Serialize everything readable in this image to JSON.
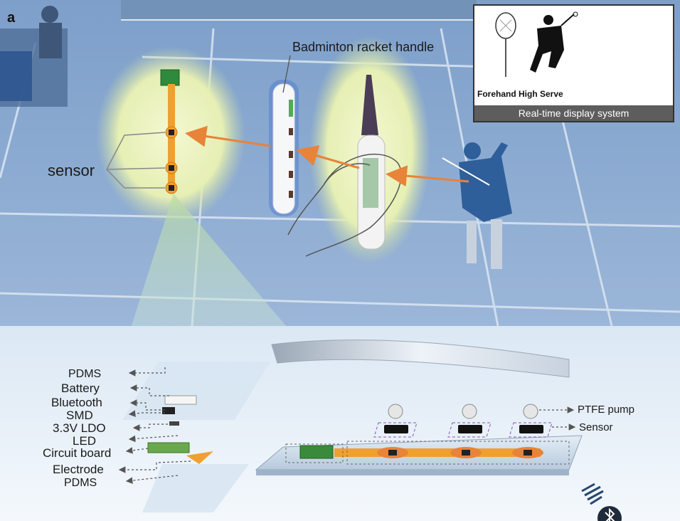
{
  "panel_label": "a",
  "handle_label": "Badminton racket handle",
  "sensor_label": "sensor",
  "display": {
    "serve_label": "Forehand High Serve",
    "caption": "Real-time display system"
  },
  "layers": [
    {
      "label": "PDMS"
    },
    {
      "label": "Battery"
    },
    {
      "label": "Bluetooth"
    },
    {
      "label": "SMD"
    },
    {
      "label": "3.3V LDO"
    },
    {
      "label": "LED"
    },
    {
      "label": "Circuit board"
    },
    {
      "label": "Electrode"
    },
    {
      "label": "PDMS"
    }
  ],
  "right_labels": {
    "pump": "PTFE pump",
    "sensor": "Sensor"
  },
  "colors": {
    "court": "#6f93bf",
    "arrow": "#e8833a",
    "flex_pcb": "#f0a030",
    "glow": "#e9f2b8"
  }
}
